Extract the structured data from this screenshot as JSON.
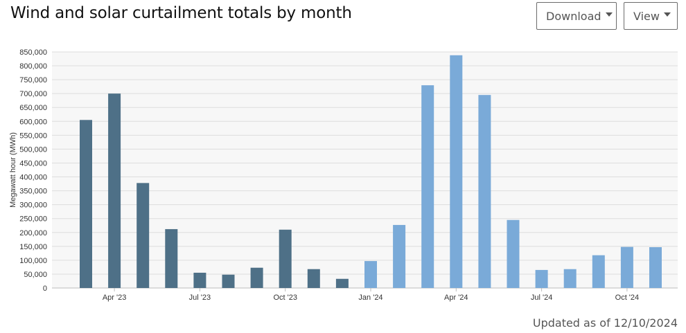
{
  "header": {
    "title": "Wind and solar curtailment totals by month",
    "download_label": "Download",
    "view_label": "View"
  },
  "footer": {
    "updated": "Updated as of 12/10/2024"
  },
  "colors": {
    "series_2023": "#4e7087",
    "series_2024": "#7aaad8",
    "grid": "#dddddd",
    "plot_bg": "#f7f7f7"
  },
  "chart_data": {
    "type": "bar",
    "title": "Wind and solar curtailment totals by month",
    "ylabel": "Megawatt hour (MWh)",
    "xlabel": "",
    "ylim": [
      0,
      850000
    ],
    "yticks": [
      0,
      50000,
      100000,
      150000,
      200000,
      250000,
      300000,
      350000,
      400000,
      450000,
      500000,
      550000,
      600000,
      650000,
      700000,
      750000,
      800000,
      850000
    ],
    "ytick_labels": [
      "0",
      "50,000",
      "100,000",
      "150,000",
      "200,000",
      "250,000",
      "300,000",
      "350,000",
      "400,000",
      "450,000",
      "500,000",
      "550,000",
      "600,000",
      "650,000",
      "700,000",
      "750,000",
      "800,000",
      "850,000"
    ],
    "categories": [
      "Mar '23",
      "Apr '23",
      "May '23",
      "Jun '23",
      "Jul '23",
      "Aug '23",
      "Sep '23",
      "Oct '23",
      "Nov '23",
      "Dec '23",
      "Jan '24",
      "Feb '24",
      "Mar '24",
      "Apr '24",
      "May '24",
      "Jun '24",
      "Jul '24",
      "Aug '24",
      "Sep '24",
      "Oct '24",
      "Nov '24"
    ],
    "xtick_labels": [
      {
        "index": 1,
        "label": "Apr '23"
      },
      {
        "index": 4,
        "label": "Jul '23"
      },
      {
        "index": 7,
        "label": "Oct '23"
      },
      {
        "index": 10,
        "label": "Jan '24"
      },
      {
        "index": 13,
        "label": "Apr '24"
      },
      {
        "index": 16,
        "label": "Jul '24"
      },
      {
        "index": 19,
        "label": "Oct '24"
      }
    ],
    "values": [
      605000,
      700000,
      378000,
      212000,
      55000,
      48000,
      73000,
      210000,
      68000,
      33000,
      97000,
      227000,
      730000,
      838000,
      695000,
      245000,
      65000,
      68000,
      118000,
      148000,
      147000
    ],
    "bar_colors": [
      "#4e7087",
      "#4e7087",
      "#4e7087",
      "#4e7087",
      "#4e7087",
      "#4e7087",
      "#4e7087",
      "#4e7087",
      "#4e7087",
      "#4e7087",
      "#7aaad8",
      "#7aaad8",
      "#7aaad8",
      "#7aaad8",
      "#7aaad8",
      "#7aaad8",
      "#7aaad8",
      "#7aaad8",
      "#7aaad8",
      "#7aaad8",
      "#7aaad8"
    ],
    "grid": true,
    "legend": "none"
  }
}
